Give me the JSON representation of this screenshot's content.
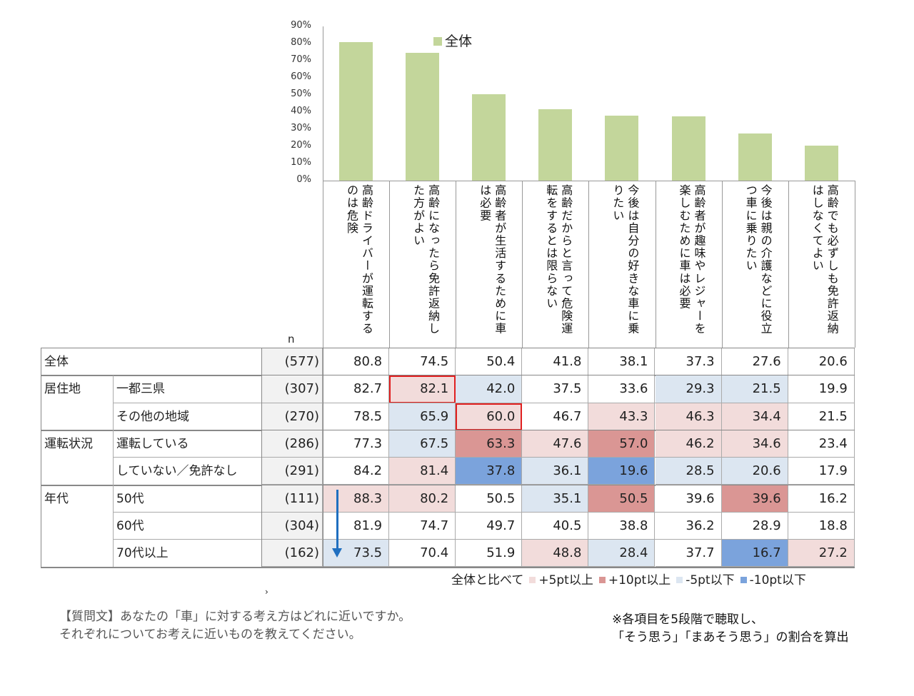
{
  "chart_data": {
    "type": "bar",
    "title": "",
    "legend": [
      "全体"
    ],
    "legend_position": "top",
    "ylim": [
      0,
      90
    ],
    "yticks": [
      "0%",
      "10%",
      "20%",
      "30%",
      "40%",
      "50%",
      "60%",
      "70%",
      "80%",
      "90%"
    ],
    "categories": [
      "高齢ドライバーが運転するのは危険",
      "高齢になったら免許返納した方がよい",
      "高齢者が生活するために車は必要",
      "高齢だからと言って危険運転をするとは限らない",
      "今後は自分の好きな車に乗りたい",
      "高齢者が趣味やレジャーを楽しむために車は必要",
      "今後は親の介護などに役立つ車に乗りたい",
      "高齢でも必ずしも免許返納はしなくてよい"
    ],
    "series": [
      {
        "name": "全体",
        "values": [
          80.8,
          74.5,
          50.4,
          41.8,
          38.1,
          37.3,
          27.6,
          20.6
        ]
      }
    ],
    "colors": {
      "bar": "#c3d69b",
      "p5": "#f2dcdb",
      "p10": "#da9694",
      "m5": "#dce6f1",
      "m10": "#7ba3dc",
      "highlight": "#e02020",
      "arrow": "#1f6fc0"
    }
  },
  "table": {
    "n_header": "n",
    "rows": [
      {
        "group": "全体",
        "sub": "",
        "n": "(577)",
        "values": [
          "80.8",
          "74.5",
          "50.4",
          "41.8",
          "38.1",
          "37.3",
          "27.6",
          "20.6"
        ],
        "shade": [
          "",
          "",
          "",
          "",
          "",
          "",
          "",
          ""
        ],
        "box": []
      },
      {
        "group": "居住地",
        "sub": "一都三県",
        "n": "(307)",
        "values": [
          "82.7",
          "82.1",
          "42.0",
          "37.5",
          "33.6",
          "29.3",
          "21.5",
          "19.9"
        ],
        "shade": [
          "",
          "p5",
          "m5",
          "",
          "",
          "m5",
          "m5",
          ""
        ],
        "box": [
          1
        ]
      },
      {
        "group": "",
        "sub": "その他の地域",
        "n": "(270)",
        "values": [
          "78.5",
          "65.9",
          "60.0",
          "46.7",
          "43.3",
          "46.3",
          "34.4",
          "21.5"
        ],
        "shade": [
          "",
          "m5",
          "p5",
          "",
          "p5",
          "p5",
          "p5",
          ""
        ],
        "box": [
          2
        ]
      },
      {
        "group": "運転状況",
        "sub": "運転している",
        "n": "(286)",
        "values": [
          "77.3",
          "67.5",
          "63.3",
          "47.6",
          "57.0",
          "46.2",
          "34.6",
          "23.4"
        ],
        "shade": [
          "",
          "m5",
          "p10",
          "p5",
          "p10",
          "p5",
          "p5",
          ""
        ],
        "box": []
      },
      {
        "group": "",
        "sub": "していない／免許なし",
        "n": "(291)",
        "values": [
          "84.2",
          "81.4",
          "37.8",
          "36.1",
          "19.6",
          "28.5",
          "20.6",
          "17.9"
        ],
        "shade": [
          "",
          "p5",
          "m10",
          "m5",
          "m10",
          "m5",
          "m5",
          ""
        ],
        "box": []
      },
      {
        "group": "年代",
        "sub": "50代",
        "n": "(111)",
        "values": [
          "88.3",
          "80.2",
          "50.5",
          "35.1",
          "50.5",
          "39.6",
          "39.6",
          "16.2"
        ],
        "shade": [
          "p5",
          "p5",
          "",
          "m5",
          "p10",
          "",
          "p10",
          ""
        ],
        "box": []
      },
      {
        "group": "",
        "sub": "60代",
        "n": "(304)",
        "values": [
          "81.9",
          "74.7",
          "49.7",
          "40.5",
          "38.8",
          "36.2",
          "28.9",
          "18.8"
        ],
        "shade": [
          "",
          "",
          "",
          "",
          "",
          "",
          "",
          ""
        ],
        "box": []
      },
      {
        "group": "",
        "sub": "70代以上",
        "n": "(162)",
        "values": [
          "73.5",
          "70.4",
          "51.9",
          "48.8",
          "28.4",
          "37.7",
          "16.7",
          "27.2"
        ],
        "shade": [
          "m5",
          "",
          "",
          "p5",
          "m5",
          "",
          "m10",
          "p5"
        ],
        "box": []
      }
    ]
  },
  "shade_legend": {
    "prefix": "全体と比べて",
    "items": [
      {
        "key": "p5",
        "label": "+5pt以上"
      },
      {
        "key": "p10",
        "label": "+10pt以上"
      },
      {
        "key": "m5",
        "label": "-5pt以下"
      },
      {
        "key": "m10",
        "label": "-10pt以下"
      }
    ]
  },
  "stray_mark": "›",
  "question": {
    "line1": "【質問文】あなたの「車」に対する考え方はどれに近いですか。",
    "line2": "それぞれについてお考えに近いものを教えてください。"
  },
  "note": {
    "line1": "※各項目を5段階で聴取し、",
    "line2": "「そう思う」「まあそう思う」の割合を算出"
  }
}
